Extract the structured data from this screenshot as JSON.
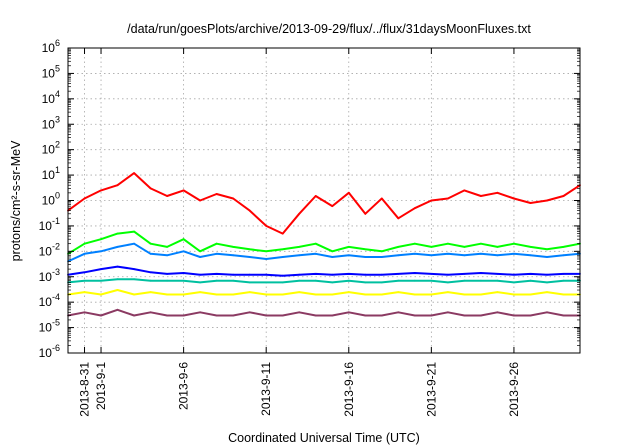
{
  "chart_data": {
    "type": "line",
    "title": "/data/run/goesPlots/archive/2013-09-29/flux/../flux/31daysMoonFluxes.txt",
    "xlabel": "Coordinated Universal Time (UTC)",
    "ylabel": "protons/cm²-s-sr-MeV",
    "y_scale": "log",
    "ylim": [
      1e-06,
      1000000.0
    ],
    "xlim": [
      "2013-08-30",
      "2013-09-30"
    ],
    "grid": true,
    "legend": "none",
    "x_ticks": [
      {
        "date": "2013-08-31",
        "label": "2013-8-31"
      },
      {
        "date": "2013-09-01",
        "label": "2013-9-1"
      },
      {
        "date": "2013-09-06",
        "label": "2013-9-6"
      },
      {
        "date": "2013-09-11",
        "label": "2013-9-11"
      },
      {
        "date": "2013-09-16",
        "label": "2013-9-16"
      },
      {
        "date": "2013-09-21",
        "label": "2013-9-21"
      },
      {
        "date": "2013-09-26",
        "label": "2013-9-26"
      }
    ],
    "y_ticks": [
      {
        "value": 1e-06,
        "base": "10",
        "exp": "-6"
      },
      {
        "value": 1e-05,
        "base": "10",
        "exp": "-5"
      },
      {
        "value": 0.0001,
        "base": "10",
        "exp": "-4"
      },
      {
        "value": 0.001,
        "base": "10",
        "exp": "-3"
      },
      {
        "value": 0.01,
        "base": "10",
        "exp": "-2"
      },
      {
        "value": 0.1,
        "base": "10",
        "exp": "-1"
      },
      {
        "value": 1.0,
        "base": "10",
        "exp": "0"
      },
      {
        "value": 10.0,
        "base": "10",
        "exp": "1"
      },
      {
        "value": 100.0,
        "base": "10",
        "exp": "2"
      },
      {
        "value": 1000.0,
        "base": "10",
        "exp": "3"
      },
      {
        "value": 10000.0,
        "base": "10",
        "exp": "4"
      },
      {
        "value": 100000.0,
        "base": "10",
        "exp": "5"
      },
      {
        "value": 1000000.0,
        "base": "10",
        "exp": "6"
      }
    ],
    "x": [
      "2013-08-30",
      "2013-08-31",
      "2013-09-01",
      "2013-09-02",
      "2013-09-03",
      "2013-09-04",
      "2013-09-05",
      "2013-09-06",
      "2013-09-07",
      "2013-09-08",
      "2013-09-09",
      "2013-09-10",
      "2013-09-11",
      "2013-09-12",
      "2013-09-13",
      "2013-09-14",
      "2013-09-15",
      "2013-09-16",
      "2013-09-17",
      "2013-09-18",
      "2013-09-19",
      "2013-09-20",
      "2013-09-21",
      "2013-09-22",
      "2013-09-23",
      "2013-09-24",
      "2013-09-25",
      "2013-09-26",
      "2013-09-27",
      "2013-09-28",
      "2013-09-29",
      "2013-09-30"
    ],
    "series": [
      {
        "color": "#ff0000",
        "values": [
          0.4,
          1.2,
          2.5,
          4,
          12,
          3,
          1.5,
          2.5,
          1,
          1.8,
          1.2,
          0.4,
          0.1,
          0.05,
          0.3,
          1.5,
          0.6,
          2,
          0.3,
          1.2,
          0.2,
          0.5,
          1,
          1.2,
          2.5,
          1.5,
          2,
          1.2,
          0.8,
          1,
          1.5,
          4
        ]
      },
      {
        "color": "#00ff00",
        "values": [
          0.008,
          0.02,
          0.03,
          0.05,
          0.06,
          0.02,
          0.015,
          0.03,
          0.01,
          0.02,
          0.015,
          0.012,
          0.01,
          0.012,
          0.015,
          0.02,
          0.01,
          0.015,
          0.012,
          0.01,
          0.015,
          0.02,
          0.015,
          0.02,
          0.015,
          0.02,
          0.015,
          0.02,
          0.015,
          0.012,
          0.015,
          0.02
        ]
      },
      {
        "color": "#0080ff",
        "values": [
          0.004,
          0.008,
          0.01,
          0.015,
          0.02,
          0.008,
          0.007,
          0.01,
          0.006,
          0.008,
          0.007,
          0.006,
          0.005,
          0.006,
          0.007,
          0.008,
          0.006,
          0.007,
          0.006,
          0.006,
          0.007,
          0.008,
          0.007,
          0.008,
          0.007,
          0.008,
          0.007,
          0.008,
          0.007,
          0.006,
          0.007,
          0.008
        ]
      },
      {
        "color": "#0000ff",
        "values": [
          0.0012,
          0.0015,
          0.002,
          0.0025,
          0.002,
          0.0015,
          0.0013,
          0.0014,
          0.0012,
          0.0013,
          0.0012,
          0.0012,
          0.0012,
          0.0011,
          0.0012,
          0.0013,
          0.0012,
          0.0013,
          0.0012,
          0.0012,
          0.0013,
          0.0014,
          0.0013,
          0.0012,
          0.0013,
          0.0014,
          0.0013,
          0.0012,
          0.0013,
          0.0012,
          0.0013,
          0.0013
        ]
      },
      {
        "color": "#00c0a0",
        "values": [
          0.0006,
          0.0007,
          0.0007,
          0.0008,
          0.0008,
          0.0007,
          0.0007,
          0.0007,
          0.0006,
          0.0007,
          0.0007,
          0.0006,
          0.0006,
          0.0006,
          0.0007,
          0.0007,
          0.0006,
          0.0007,
          0.0006,
          0.0006,
          0.0007,
          0.0007,
          0.0007,
          0.0006,
          0.0007,
          0.0007,
          0.0007,
          0.0006,
          0.0007,
          0.0006,
          0.0007,
          0.0007
        ]
      },
      {
        "color": "#ffff00",
        "values": [
          0.0002,
          0.00025,
          0.0002,
          0.0003,
          0.0002,
          0.00025,
          0.0002,
          0.0002,
          0.00025,
          0.0002,
          0.0002,
          0.00025,
          0.0002,
          0.0002,
          0.00025,
          0.0002,
          0.0002,
          0.00025,
          0.0002,
          0.0002,
          0.00025,
          0.0002,
          0.0002,
          0.00025,
          0.0002,
          0.0002,
          0.00025,
          0.0002,
          0.0002,
          0.00025,
          0.0002,
          0.0002
        ]
      },
      {
        "color": "#8b3a62",
        "values": [
          3e-05,
          4e-05,
          3e-05,
          5e-05,
          3e-05,
          4e-05,
          3e-05,
          3e-05,
          4e-05,
          3e-05,
          3e-05,
          4e-05,
          3e-05,
          3e-05,
          4e-05,
          3e-05,
          3e-05,
          4e-05,
          3e-05,
          3e-05,
          4e-05,
          3e-05,
          3e-05,
          4e-05,
          3e-05,
          3e-05,
          4e-05,
          3e-05,
          3e-05,
          4e-05,
          3e-05,
          3e-05
        ]
      }
    ]
  }
}
